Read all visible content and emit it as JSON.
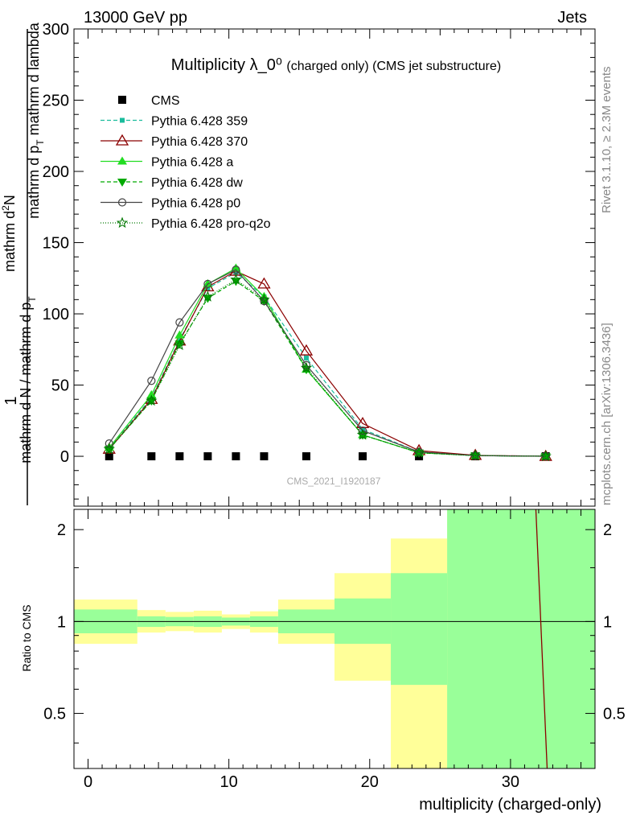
{
  "header": {
    "energy_label": "13000 GeV pp",
    "category_label": "Jets",
    "side_label_top": "Rivet 3.1.10, ≥ 2.3M events",
    "side_label_bottom": "mcplots.cern.ch [arXiv:1306.3436]",
    "watermark": "CMS_2021_I1920187"
  },
  "chart_data": [
    {
      "type": "line",
      "title": "Multiplicity λ_0⁰",
      "subtitle": "(charged only) (CMS jet substructure)",
      "ylabel_parts": [
        "1",
        "mathrm d N / mathrm d p",
        "T",
        "mathrm d p",
        "T",
        "mathrm d lambda",
        "mathrm d",
        "2",
        "N"
      ],
      "xlim": [
        -1,
        36
      ],
      "ylim": [
        -35,
        300
      ],
      "yticks": [
        0,
        50,
        100,
        150,
        200,
        250,
        300
      ],
      "grid": false,
      "legend_position": "top-left",
      "series": [
        {
          "name": "CMS",
          "color": "#000000",
          "marker": "square",
          "dash": "none",
          "x": [
            1.5,
            4.5,
            6.5,
            8.5,
            10.5,
            12.5,
            15.5,
            19.5,
            23.5,
            27.5,
            32.5
          ],
          "y": [
            0,
            0,
            0,
            0,
            0,
            0,
            0,
            0,
            0,
            0,
            0
          ]
        },
        {
          "name": "Pythia 6.428 359",
          "color": "#1abc9c",
          "marker": "square-small",
          "dash": "5,3",
          "x": [
            1.5,
            4.5,
            6.5,
            8.5,
            10.5,
            12.5,
            15.5,
            19.5,
            23.5,
            27.5,
            32.5
          ],
          "y": [
            6,
            41,
            82,
            118,
            129,
            112,
            69,
            19,
            3,
            0.5,
            0
          ]
        },
        {
          "name": "Pythia 6.428 370",
          "color": "#8b0000",
          "marker": "triangle-open",
          "dash": "none",
          "x": [
            1.5,
            4.5,
            6.5,
            8.5,
            10.5,
            12.5,
            15.5,
            19.5,
            23.5,
            27.5,
            32.5
          ],
          "y": [
            5,
            40,
            81,
            119,
            130,
            121,
            74,
            23,
            4,
            0.7,
            0
          ]
        },
        {
          "name": "Pythia 6.428 a",
          "color": "#22dd22",
          "marker": "triangle",
          "dash": "none",
          "x": [
            1.5,
            4.5,
            6.5,
            8.5,
            10.5,
            12.5,
            15.5,
            19.5,
            23.5,
            27.5,
            32.5
          ],
          "y": [
            6,
            43,
            85,
            121,
            132,
            112,
            61,
            15,
            2.5,
            0.5,
            0
          ]
        },
        {
          "name": "Pythia 6.428 dw",
          "color": "#00aa00",
          "marker": "triangle-down",
          "dash": "5,3",
          "x": [
            1.5,
            4.5,
            6.5,
            8.5,
            10.5,
            12.5,
            15.5,
            19.5,
            23.5,
            27.5,
            32.5
          ],
          "y": [
            5,
            39,
            79,
            111,
            123,
            109,
            61,
            15,
            2.5,
            0.5,
            0
          ]
        },
        {
          "name": "Pythia 6.428 p0",
          "color": "#444444",
          "marker": "circle-open",
          "dash": "none",
          "x": [
            1.5,
            4.5,
            6.5,
            8.5,
            10.5,
            12.5,
            15.5,
            19.5,
            23.5,
            27.5,
            32.5
          ],
          "y": [
            9,
            53,
            94,
            121,
            131,
            109,
            64,
            18,
            3,
            0.5,
            0
          ]
        },
        {
          "name": "Pythia 6.428 pro-q2o",
          "color": "#007700",
          "marker": "star",
          "dash": "1,2",
          "x": [
            1.5,
            4.5,
            6.5,
            8.5,
            10.5,
            12.5,
            15.5,
            19.5,
            23.5,
            27.5,
            32.5
          ],
          "y": [
            5,
            39,
            78,
            112,
            124,
            110,
            62,
            15,
            2.5,
            0.5,
            0
          ]
        }
      ]
    },
    {
      "type": "area",
      "ylabel": "Ratio to CMS",
      "xlabel": "multiplicity (charged-only)",
      "xlim": [
        -1,
        36
      ],
      "ylim": [
        0.33,
        2.33
      ],
      "yscale": "log",
      "yticks": [
        0.5,
        1,
        2
      ],
      "xticks": [
        0,
        10,
        20,
        30
      ],
      "bins": [
        {
          "x0": -1,
          "x1": 3.5,
          "stat_lo": 0.915,
          "stat_hi": 1.095,
          "tot_lo": 0.845,
          "tot_hi": 1.18
        },
        {
          "x0": 3.5,
          "x1": 5.5,
          "stat_lo": 0.96,
          "stat_hi": 1.04,
          "tot_lo": 0.92,
          "tot_hi": 1.09
        },
        {
          "x0": 5.5,
          "x1": 7.5,
          "stat_lo": 0.965,
          "stat_hi": 1.035,
          "tot_lo": 0.93,
          "tot_hi": 1.075
        },
        {
          "x0": 7.5,
          "x1": 9.5,
          "stat_lo": 0.96,
          "stat_hi": 1.04,
          "tot_lo": 0.92,
          "tot_hi": 1.085
        },
        {
          "x0": 9.5,
          "x1": 11.5,
          "stat_lo": 0.97,
          "stat_hi": 1.03,
          "tot_lo": 0.945,
          "tot_hi": 1.055
        },
        {
          "x0": 11.5,
          "x1": 13.5,
          "stat_lo": 0.96,
          "stat_hi": 1.04,
          "tot_lo": 0.92,
          "tot_hi": 1.08
        },
        {
          "x0": 13.5,
          "x1": 17.5,
          "stat_lo": 0.915,
          "stat_hi": 1.095,
          "tot_lo": 0.845,
          "tot_hi": 1.18
        },
        {
          "x0": 17.5,
          "x1": 21.5,
          "stat_lo": 0.845,
          "stat_hi": 1.19,
          "tot_lo": 0.64,
          "tot_hi": 1.44
        },
        {
          "x0": 21.5,
          "x1": 25.5,
          "stat_lo": 0.62,
          "stat_hi": 1.44,
          "tot_lo": 0.33,
          "tot_hi": 1.87
        },
        {
          "x0": 25.5,
          "x1": 36,
          "stat_lo": 0.33,
          "stat_hi": 2.33,
          "tot_lo": 0.33,
          "tot_hi": 2.33
        }
      ],
      "ratio_line": {
        "color": "#8b0000",
        "x": [
          31.8,
          32.6
        ],
        "y": [
          2.33,
          0.33
        ]
      }
    }
  ]
}
